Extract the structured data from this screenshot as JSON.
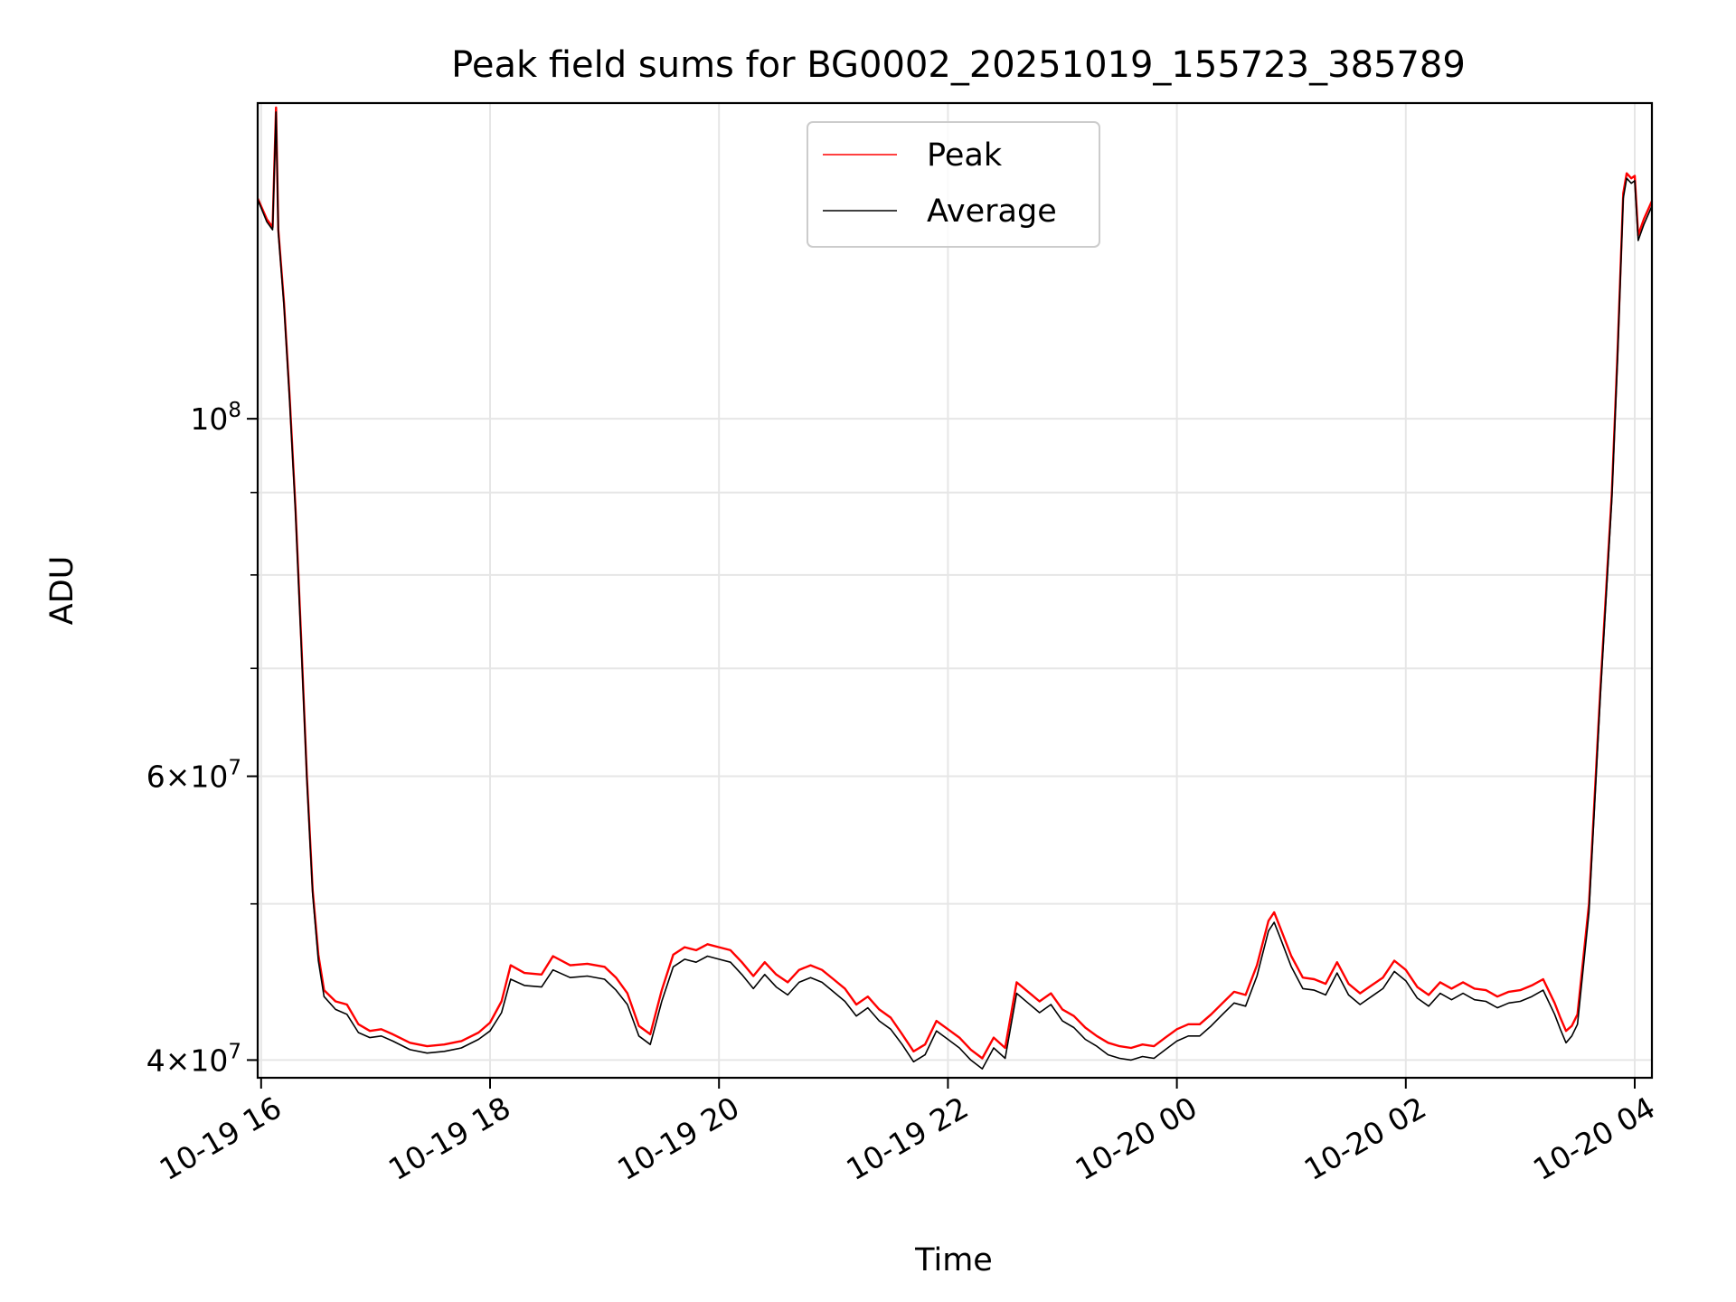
{
  "chart_data": {
    "type": "line",
    "title": "Peak field sums for BG0002_20251019_155723_385789",
    "xlabel": "Time",
    "ylabel": "ADU",
    "y_scale": "log",
    "ylim": [
      39000000,
      157000000
    ],
    "xlim_hours": [
      15.97,
      28.15
    ],
    "grid": true,
    "legend_position": "upper center",
    "x_ticks": [
      {
        "hours": 16,
        "label": "10-19 16"
      },
      {
        "hours": 18,
        "label": "10-19 18"
      },
      {
        "hours": 20,
        "label": "10-19 20"
      },
      {
        "hours": 22,
        "label": "10-19 22"
      },
      {
        "hours": 24,
        "label": "10-20 00"
      },
      {
        "hours": 26,
        "label": "10-20 02"
      },
      {
        "hours": 28,
        "label": "10-20 04"
      }
    ],
    "y_major_ticks": [
      {
        "value": 40000000,
        "mantissa": "4",
        "exponent": "7"
      },
      {
        "value": 60000000,
        "mantissa": "6",
        "exponent": "7"
      },
      {
        "value": 100000000,
        "base": "10",
        "exponent": "8"
      }
    ],
    "y_minor_grid": [
      40000000,
      50000000,
      60000000,
      70000000,
      80000000,
      90000000,
      100000000
    ],
    "series": [
      {
        "name": "Peak",
        "color": "#ff0000",
        "points": [
          [
            15.97,
            137000000
          ],
          [
            16.05,
            133000000
          ],
          [
            16.1,
            131500000
          ],
          [
            16.13,
            156000000
          ],
          [
            16.15,
            131000000
          ],
          [
            16.2,
            118000000
          ],
          [
            16.25,
            103000000
          ],
          [
            16.3,
            88000000
          ],
          [
            16.35,
            73000000
          ],
          [
            16.4,
            60000000
          ],
          [
            16.45,
            51000000
          ],
          [
            16.5,
            46500000
          ],
          [
            16.55,
            44200000
          ],
          [
            16.65,
            43500000
          ],
          [
            16.75,
            43300000
          ],
          [
            16.85,
            42100000
          ],
          [
            16.95,
            41700000
          ],
          [
            17.05,
            41800000
          ],
          [
            17.15,
            41500000
          ],
          [
            17.3,
            41000000
          ],
          [
            17.45,
            40800000
          ],
          [
            17.6,
            40900000
          ],
          [
            17.75,
            41100000
          ],
          [
            17.9,
            41600000
          ],
          [
            18.0,
            42200000
          ],
          [
            18.1,
            43500000
          ],
          [
            18.18,
            45800000
          ],
          [
            18.3,
            45300000
          ],
          [
            18.45,
            45200000
          ],
          [
            18.55,
            46400000
          ],
          [
            18.7,
            45800000
          ],
          [
            18.85,
            45900000
          ],
          [
            19.0,
            45700000
          ],
          [
            19.1,
            45000000
          ],
          [
            19.2,
            44000000
          ],
          [
            19.3,
            42000000
          ],
          [
            19.4,
            41500000
          ],
          [
            19.5,
            44200000
          ],
          [
            19.6,
            46500000
          ],
          [
            19.7,
            47000000
          ],
          [
            19.8,
            46800000
          ],
          [
            19.9,
            47200000
          ],
          [
            20.0,
            47000000
          ],
          [
            20.1,
            46800000
          ],
          [
            20.2,
            46000000
          ],
          [
            20.3,
            45100000
          ],
          [
            20.4,
            46000000
          ],
          [
            20.5,
            45200000
          ],
          [
            20.6,
            44700000
          ],
          [
            20.7,
            45500000
          ],
          [
            20.8,
            45800000
          ],
          [
            20.9,
            45500000
          ],
          [
            21.0,
            44900000
          ],
          [
            21.1,
            44300000
          ],
          [
            21.2,
            43300000
          ],
          [
            21.3,
            43800000
          ],
          [
            21.4,
            43000000
          ],
          [
            21.5,
            42500000
          ],
          [
            21.6,
            41500000
          ],
          [
            21.7,
            40500000
          ],
          [
            21.8,
            40900000
          ],
          [
            21.9,
            42300000
          ],
          [
            22.0,
            41800000
          ],
          [
            22.1,
            41300000
          ],
          [
            22.2,
            40600000
          ],
          [
            22.3,
            40100000
          ],
          [
            22.4,
            41300000
          ],
          [
            22.5,
            40700000
          ],
          [
            22.6,
            44700000
          ],
          [
            22.7,
            44100000
          ],
          [
            22.8,
            43500000
          ],
          [
            22.9,
            44000000
          ],
          [
            23.0,
            43000000
          ],
          [
            23.1,
            42600000
          ],
          [
            23.2,
            41900000
          ],
          [
            23.3,
            41400000
          ],
          [
            23.4,
            41000000
          ],
          [
            23.5,
            40800000
          ],
          [
            23.6,
            40700000
          ],
          [
            23.7,
            40900000
          ],
          [
            23.8,
            40800000
          ],
          [
            23.9,
            41300000
          ],
          [
            24.0,
            41800000
          ],
          [
            24.1,
            42100000
          ],
          [
            24.2,
            42100000
          ],
          [
            24.3,
            42700000
          ],
          [
            24.4,
            43400000
          ],
          [
            24.5,
            44100000
          ],
          [
            24.6,
            43900000
          ],
          [
            24.7,
            45800000
          ],
          [
            24.8,
            48800000
          ],
          [
            24.85,
            49400000
          ],
          [
            24.9,
            48400000
          ],
          [
            25.0,
            46400000
          ],
          [
            25.1,
            45000000
          ],
          [
            25.2,
            44900000
          ],
          [
            25.3,
            44600000
          ],
          [
            25.4,
            46000000
          ],
          [
            25.5,
            44600000
          ],
          [
            25.6,
            44000000
          ],
          [
            25.7,
            44500000
          ],
          [
            25.8,
            45000000
          ],
          [
            25.9,
            46100000
          ],
          [
            26.0,
            45500000
          ],
          [
            26.1,
            44400000
          ],
          [
            26.2,
            43900000
          ],
          [
            26.3,
            44700000
          ],
          [
            26.4,
            44300000
          ],
          [
            26.5,
            44700000
          ],
          [
            26.6,
            44300000
          ],
          [
            26.7,
            44200000
          ],
          [
            26.8,
            43800000
          ],
          [
            26.9,
            44100000
          ],
          [
            27.0,
            44200000
          ],
          [
            27.1,
            44500000
          ],
          [
            27.2,
            44900000
          ],
          [
            27.3,
            43400000
          ],
          [
            27.35,
            42500000
          ],
          [
            27.4,
            41700000
          ],
          [
            27.45,
            42000000
          ],
          [
            27.5,
            42700000
          ],
          [
            27.6,
            50000000
          ],
          [
            27.7,
            68000000
          ],
          [
            27.8,
            90000000
          ],
          [
            27.85,
            110000000
          ],
          [
            27.9,
            138000000
          ],
          [
            27.93,
            142000000
          ],
          [
            27.97,
            141000000
          ],
          [
            28.0,
            141500000
          ],
          [
            28.03,
            130000000
          ],
          [
            28.08,
            133000000
          ],
          [
            28.15,
            136500000
          ]
        ]
      },
      {
        "name": "Average",
        "color": "#000000",
        "points": [
          [
            15.97,
            136800000
          ],
          [
            16.05,
            132500000
          ],
          [
            16.1,
            131000000
          ],
          [
            16.13,
            155000000
          ],
          [
            16.15,
            130500000
          ],
          [
            16.2,
            117500000
          ],
          [
            16.25,
            102500000
          ],
          [
            16.3,
            87500000
          ],
          [
            16.35,
            72500000
          ],
          [
            16.4,
            59700000
          ],
          [
            16.45,
            50700000
          ],
          [
            16.5,
            46100000
          ],
          [
            16.55,
            43800000
          ],
          [
            16.65,
            43000000
          ],
          [
            16.75,
            42700000
          ],
          [
            16.85,
            41600000
          ],
          [
            16.95,
            41300000
          ],
          [
            17.05,
            41400000
          ],
          [
            17.15,
            41100000
          ],
          [
            17.3,
            40600000
          ],
          [
            17.45,
            40400000
          ],
          [
            17.6,
            40500000
          ],
          [
            17.75,
            40700000
          ],
          [
            17.9,
            41200000
          ],
          [
            18.0,
            41700000
          ],
          [
            18.1,
            42800000
          ],
          [
            18.18,
            44900000
          ],
          [
            18.3,
            44500000
          ],
          [
            18.45,
            44400000
          ],
          [
            18.55,
            45500000
          ],
          [
            18.7,
            45000000
          ],
          [
            18.85,
            45100000
          ],
          [
            19.0,
            44900000
          ],
          [
            19.1,
            44200000
          ],
          [
            19.2,
            43300000
          ],
          [
            19.3,
            41400000
          ],
          [
            19.4,
            40900000
          ],
          [
            19.5,
            43500000
          ],
          [
            19.6,
            45700000
          ],
          [
            19.7,
            46200000
          ],
          [
            19.8,
            46000000
          ],
          [
            19.9,
            46400000
          ],
          [
            20.0,
            46200000
          ],
          [
            20.1,
            46000000
          ],
          [
            20.2,
            45200000
          ],
          [
            20.3,
            44300000
          ],
          [
            20.4,
            45200000
          ],
          [
            20.5,
            44400000
          ],
          [
            20.6,
            43900000
          ],
          [
            20.7,
            44700000
          ],
          [
            20.8,
            45000000
          ],
          [
            20.9,
            44700000
          ],
          [
            21.0,
            44100000
          ],
          [
            21.1,
            43500000
          ],
          [
            21.2,
            42600000
          ],
          [
            21.3,
            43100000
          ],
          [
            21.4,
            42300000
          ],
          [
            21.5,
            41800000
          ],
          [
            21.6,
            40900000
          ],
          [
            21.7,
            39900000
          ],
          [
            21.8,
            40300000
          ],
          [
            21.9,
            41700000
          ],
          [
            22.0,
            41200000
          ],
          [
            22.1,
            40700000
          ],
          [
            22.2,
            40000000
          ],
          [
            22.3,
            39500000
          ],
          [
            22.4,
            40700000
          ],
          [
            22.5,
            40100000
          ],
          [
            22.6,
            44000000
          ],
          [
            22.7,
            43400000
          ],
          [
            22.8,
            42800000
          ],
          [
            22.9,
            43300000
          ],
          [
            23.0,
            42300000
          ],
          [
            23.1,
            41900000
          ],
          [
            23.2,
            41200000
          ],
          [
            23.3,
            40800000
          ],
          [
            23.4,
            40300000
          ],
          [
            23.5,
            40100000
          ],
          [
            23.6,
            40000000
          ],
          [
            23.7,
            40200000
          ],
          [
            23.8,
            40100000
          ],
          [
            23.9,
            40600000
          ],
          [
            24.0,
            41100000
          ],
          [
            24.1,
            41400000
          ],
          [
            24.2,
            41400000
          ],
          [
            24.3,
            42000000
          ],
          [
            24.4,
            42700000
          ],
          [
            24.5,
            43400000
          ],
          [
            24.6,
            43200000
          ],
          [
            24.7,
            45100000
          ],
          [
            24.8,
            48100000
          ],
          [
            24.85,
            48700000
          ],
          [
            24.9,
            47700000
          ],
          [
            25.0,
            45700000
          ],
          [
            25.1,
            44300000
          ],
          [
            25.2,
            44200000
          ],
          [
            25.3,
            43900000
          ],
          [
            25.4,
            45300000
          ],
          [
            25.5,
            43900000
          ],
          [
            25.6,
            43300000
          ],
          [
            25.7,
            43800000
          ],
          [
            25.8,
            44300000
          ],
          [
            25.9,
            45400000
          ],
          [
            26.0,
            44800000
          ],
          [
            26.1,
            43700000
          ],
          [
            26.2,
            43200000
          ],
          [
            26.3,
            44000000
          ],
          [
            26.4,
            43600000
          ],
          [
            26.5,
            44000000
          ],
          [
            26.6,
            43600000
          ],
          [
            26.7,
            43500000
          ],
          [
            26.8,
            43100000
          ],
          [
            26.9,
            43400000
          ],
          [
            27.0,
            43500000
          ],
          [
            27.1,
            43800000
          ],
          [
            27.2,
            44200000
          ],
          [
            27.3,
            42700000
          ],
          [
            27.35,
            41800000
          ],
          [
            27.4,
            41000000
          ],
          [
            27.45,
            41400000
          ],
          [
            27.5,
            42100000
          ],
          [
            27.6,
            49400000
          ],
          [
            27.7,
            67300000
          ],
          [
            27.8,
            89200000
          ],
          [
            27.85,
            109000000
          ],
          [
            27.9,
            137000000
          ],
          [
            27.93,
            141000000
          ],
          [
            27.97,
            140000000
          ],
          [
            28.0,
            140500000
          ],
          [
            28.03,
            129000000
          ],
          [
            28.08,
            132000000
          ],
          [
            28.15,
            135500000
          ]
        ]
      }
    ]
  }
}
